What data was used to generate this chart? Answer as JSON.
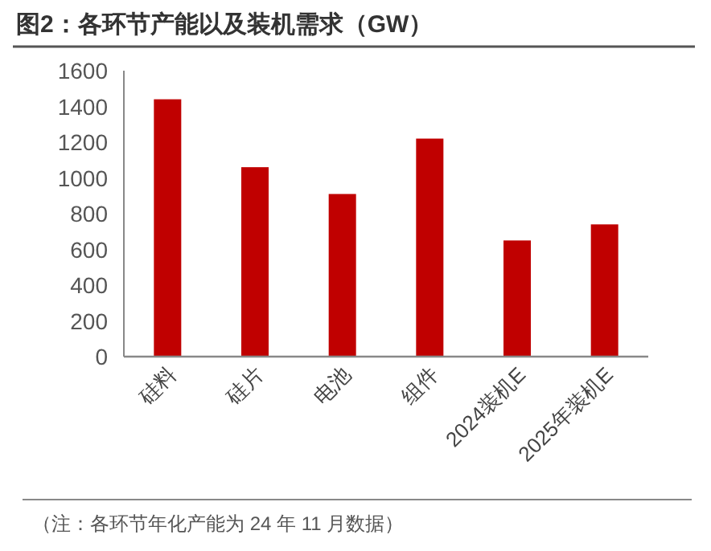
{
  "chart_data": {
    "type": "bar",
    "title": "图2：各环节产能以及装机需求（GW）",
    "categories": [
      "硅料",
      "硅片",
      "电池",
      "组件",
      "2024装机E",
      "2025年装机E"
    ],
    "values": [
      1440,
      1060,
      910,
      1220,
      650,
      740
    ],
    "color": "#c00000",
    "ylim": [
      0,
      1600
    ],
    "yticks": [
      0,
      200,
      400,
      600,
      800,
      1000,
      1200,
      1400,
      1600
    ],
    "grid": false,
    "annotations": [
      "（注：各环节年化产能为 24 年 11 月数据）"
    ]
  }
}
